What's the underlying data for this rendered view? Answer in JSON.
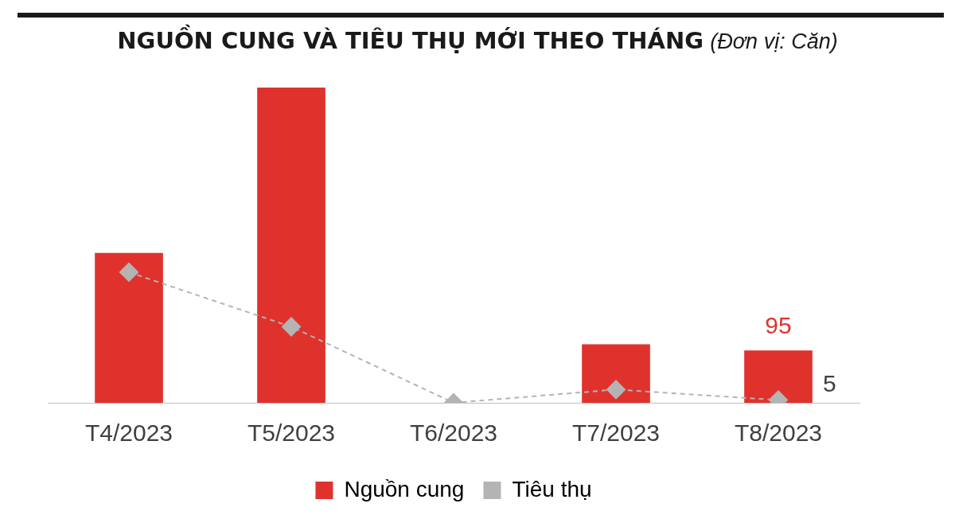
{
  "chart_data": {
    "type": "bar",
    "title": "NGUỒN CUNG VÀ TIÊU THỤ MỚI THEO THÁNG",
    "subtitle": "(Đơn vị: Căn)",
    "categories": [
      "T4/2023",
      "T5/2023",
      "T6/2023",
      "T7/2023",
      "T8/2023"
    ],
    "series": [
      {
        "name": "Nguồn cung",
        "color": "#e0322d",
        "values": [
          272,
          572,
          0,
          106,
          95
        ],
        "value_labels": [
          null,
          null,
          null,
          null,
          "95"
        ]
      },
      {
        "name": "Tiêu thụ",
        "type": "line",
        "color": "#b4b4b4",
        "values": [
          237,
          138,
          0,
          24,
          5
        ],
        "value_labels": [
          null,
          null,
          null,
          null,
          "5"
        ],
        "marker": "diamond",
        "line_style": "dashed"
      }
    ],
    "legend": "bottom",
    "grid": false
  }
}
